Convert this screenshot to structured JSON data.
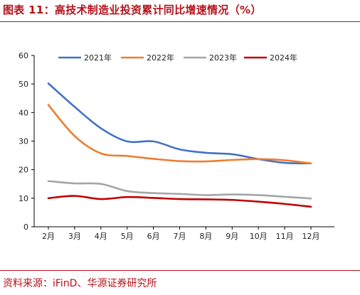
{
  "title": "图表 11：高技术制造业投资累计同比增速情况（%）",
  "source": "资料来源：iFinD、华源证券研究所",
  "chart_data": {
    "type": "line",
    "title": "高技术制造业投资累计同比增速情况（%）",
    "xlabel": "",
    "ylabel": "",
    "categories": [
      "2月",
      "3月",
      "4月",
      "5月",
      "6月",
      "7月",
      "8月",
      "9月",
      "10月",
      "11月",
      "12月"
    ],
    "ylim": [
      0,
      60
    ],
    "yticks": [
      0,
      10,
      20,
      30,
      40,
      50,
      60
    ],
    "grid": false,
    "legend_position": "top",
    "series": [
      {
        "name": "2021年",
        "color": "#4472c4",
        "values": [
          50.2,
          42.0,
          34.5,
          29.9,
          29.9,
          27.1,
          25.9,
          25.4,
          23.7,
          22.4,
          22.2
        ]
      },
      {
        "name": "2022年",
        "color": "#ed7d31",
        "values": [
          42.7,
          31.8,
          25.7,
          24.8,
          23.8,
          23.0,
          22.9,
          23.4,
          23.7,
          23.3,
          22.2
        ]
      },
      {
        "name": "2023年",
        "color": "#a5a5a5",
        "values": [
          16.0,
          15.2,
          15.0,
          12.5,
          11.8,
          11.5,
          11.1,
          11.3,
          11.1,
          10.5,
          9.9
        ]
      },
      {
        "name": "2024年",
        "color": "#c00000",
        "values": [
          10.0,
          10.8,
          9.7,
          10.4,
          10.1,
          9.7,
          9.6,
          9.4,
          8.8,
          8.0,
          7.0
        ]
      }
    ]
  }
}
